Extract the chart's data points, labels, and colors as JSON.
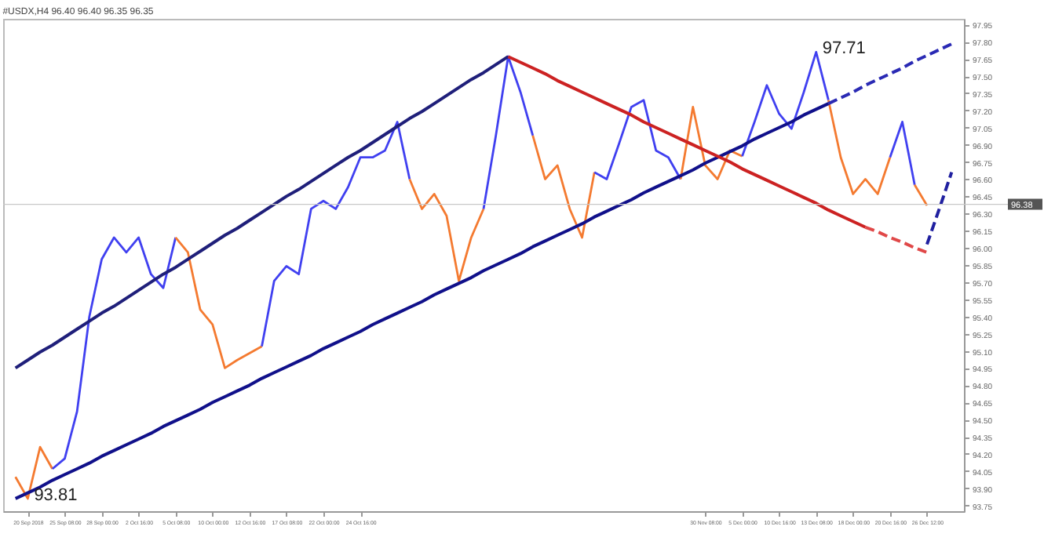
{
  "chart_data": {
    "type": "line",
    "title": "#USDX,H4 96.40 96.40 96.35 96.35",
    "categories": [
      null,
      "20 Sep 2018",
      null,
      null,
      "25 Sep 08:00",
      null,
      null,
      "28 Sep 00:00",
      null,
      null,
      "2 Oct 16:00",
      null,
      null,
      "5 Oct 08:00",
      null,
      null,
      "10 Oct 00:00",
      null,
      null,
      "12 Oct 16:00",
      null,
      null,
      "17 Oct 08:00",
      null,
      null,
      "22 Oct 00:00",
      null,
      null,
      "24 Oct 16:00",
      null,
      null,
      null,
      null,
      null,
      null,
      null,
      null,
      null,
      null,
      null,
      null,
      null,
      null,
      null,
      null,
      null,
      null,
      null,
      null,
      null,
      null,
      null,
      null,
      null,
      null,
      null,
      "30 Nov 08:00",
      null,
      null,
      "5 Dec 00:00",
      null,
      null,
      "10 Dec 16:00",
      null,
      null,
      "13 Dec 08:00",
      null,
      null,
      "18 Dec 00:00",
      null,
      null,
      "20 Dec 16:00",
      null,
      null,
      "26 Dec 12:00",
      null,
      null
    ],
    "ylim": [
      93.7,
      98.0
    ],
    "yticks": [
      {
        "value": 93.75,
        "label": "93.75"
      },
      {
        "value": 93.9,
        "label": "93.90"
      },
      {
        "value": 94.05,
        "label": "94.05"
      },
      {
        "value": 94.2,
        "label": "94.20"
      },
      {
        "value": 94.35,
        "label": "94.35"
      },
      {
        "value": 94.5,
        "label": "94.50"
      },
      {
        "value": 94.65,
        "label": "94.65"
      },
      {
        "value": 94.8,
        "label": "94.80"
      },
      {
        "value": 94.95,
        "label": "94.95"
      },
      {
        "value": 95.1,
        "label": "95.10"
      },
      {
        "value": 95.25,
        "label": "95.25"
      },
      {
        "value": 95.4,
        "label": "95.40"
      },
      {
        "value": 95.55,
        "label": "95.55"
      },
      {
        "value": 95.7,
        "label": "95.70"
      },
      {
        "value": 95.85,
        "label": "95.85"
      },
      {
        "value": 96.0,
        "label": "96.00"
      },
      {
        "value": 96.15,
        "label": "96.15"
      },
      {
        "value": 96.3,
        "label": "96.30"
      },
      {
        "value": 96.45,
        "label": "96.45"
      },
      {
        "value": 96.6,
        "label": "96.60"
      },
      {
        "value": 96.75,
        "label": "96.75"
      },
      {
        "value": 96.9,
        "label": "96.90"
      },
      {
        "value": 97.05,
        "label": "97.05"
      },
      {
        "value": 97.2,
        "label": "97.20"
      },
      {
        "value": 97.35,
        "label": "97.35"
      },
      {
        "value": 97.5,
        "label": "97.50"
      },
      {
        "value": 97.65,
        "label": "97.65"
      },
      {
        "value": 97.8,
        "label": "97.80"
      },
      {
        "value": 97.95,
        "label": "97.95"
      }
    ],
    "grid": false,
    "marker": "none",
    "series": [
      {
        "color": "#f47a30",
        "values": [
          94.0,
          93.81,
          94.26,
          94.07,
          null,
          null,
          null,
          null,
          null,
          null,
          null,
          null,
          null,
          null,
          null,
          null,
          null,
          null,
          null,
          null,
          null,
          null,
          null,
          null,
          null,
          null,
          null,
          null,
          null,
          null,
          null,
          null,
          null,
          null,
          null,
          null,
          null,
          null,
          null,
          null,
          null,
          null,
          null,
          null,
          null,
          null,
          null,
          null,
          null,
          null,
          null,
          null,
          null,
          null,
          null,
          null,
          null,
          null,
          null,
          null,
          null,
          null,
          null,
          null,
          null,
          null,
          null,
          null,
          null,
          null,
          null,
          null,
          null,
          null,
          null,
          null,
          null
        ]
      },
      {
        "color": "#4040f0",
        "values": [
          null,
          null,
          null,
          94.07,
          94.16,
          94.57,
          95.4,
          95.9,
          96.09,
          95.96,
          96.09,
          95.77,
          95.65,
          96.09,
          null,
          null,
          null,
          null,
          null,
          null,
          null,
          null,
          null,
          null,
          null,
          null,
          null,
          null,
          null,
          null,
          null,
          null,
          null,
          null,
          null,
          null,
          null,
          null,
          null,
          null,
          null,
          null,
          null,
          null,
          null,
          null,
          null,
          null,
          null,
          null,
          null,
          null,
          null,
          null,
          null,
          null,
          null,
          null,
          null,
          null,
          null,
          null,
          null,
          null,
          null,
          null,
          null,
          null,
          null,
          null,
          null,
          null,
          null,
          null,
          null,
          null,
          null
        ]
      },
      {
        "color": "#f47a30",
        "values": [
          null,
          null,
          null,
          null,
          null,
          null,
          null,
          null,
          null,
          null,
          null,
          null,
          null,
          96.09,
          95.96,
          95.46,
          95.33,
          94.95,
          95.02,
          95.08,
          95.14,
          null,
          null,
          null,
          null,
          null,
          null,
          null,
          null,
          null,
          null,
          null,
          null,
          null,
          null,
          null,
          null,
          null,
          null,
          null,
          null,
          null,
          null,
          null,
          null,
          null,
          null,
          null,
          null,
          null,
          null,
          null,
          null,
          null,
          null,
          null,
          null,
          null,
          null,
          null,
          null,
          null,
          null,
          null,
          null,
          null,
          null,
          null,
          null,
          null,
          null,
          null,
          null,
          null,
          null,
          null,
          null
        ]
      },
      {
        "color": "#4040f0",
        "values": [
          null,
          null,
          null,
          null,
          null,
          null,
          null,
          null,
          null,
          null,
          null,
          null,
          null,
          null,
          null,
          null,
          null,
          null,
          null,
          null,
          95.14,
          95.71,
          95.84,
          95.77,
          96.34,
          96.41,
          96.34,
          96.53,
          96.79,
          96.79,
          96.85,
          97.1,
          96.6,
          null,
          null,
          null,
          null,
          null,
          null,
          null,
          null,
          null,
          null,
          null,
          null,
          null,
          null,
          null,
          null,
          null,
          null,
          null,
          null,
          null,
          null,
          null,
          null,
          null,
          null,
          null,
          null,
          null,
          null,
          null,
          null,
          null,
          null,
          null,
          null,
          null,
          null,
          null,
          null,
          null,
          null,
          null,
          null
        ]
      },
      {
        "color": "#f47a30",
        "values": [
          null,
          null,
          null,
          null,
          null,
          null,
          null,
          null,
          null,
          null,
          null,
          null,
          null,
          null,
          null,
          null,
          null,
          null,
          null,
          null,
          null,
          null,
          null,
          null,
          null,
          null,
          null,
          null,
          null,
          null,
          null,
          null,
          96.6,
          96.34,
          96.47,
          96.28,
          95.71,
          96.09,
          96.34,
          null,
          null,
          null,
          null,
          null,
          null,
          null,
          null,
          null,
          null,
          null,
          null,
          null,
          null,
          null,
          null,
          null,
          null,
          null,
          null,
          null,
          null,
          null,
          null,
          null,
          null,
          null,
          null,
          null,
          null,
          null,
          null,
          null,
          null,
          null,
          null,
          null,
          null
        ]
      },
      {
        "color": "#4040f0",
        "values": [
          null,
          null,
          null,
          null,
          null,
          null,
          null,
          null,
          null,
          null,
          null,
          null,
          null,
          null,
          null,
          null,
          null,
          null,
          null,
          null,
          null,
          null,
          null,
          null,
          null,
          null,
          null,
          null,
          null,
          null,
          null,
          null,
          null,
          null,
          null,
          null,
          null,
          null,
          96.34,
          96.98,
          97.67,
          97.36,
          96.98,
          null,
          null,
          null,
          null,
          null,
          null,
          null,
          null,
          null,
          null,
          null,
          null,
          null,
          null,
          null,
          null,
          null,
          null,
          null,
          null,
          null,
          null,
          null,
          null,
          null,
          null,
          null,
          null,
          null,
          null,
          null,
          null,
          null,
          null
        ]
      },
      {
        "color": "#f47a30",
        "values": [
          null,
          null,
          null,
          null,
          null,
          null,
          null,
          null,
          null,
          null,
          null,
          null,
          null,
          null,
          null,
          null,
          null,
          null,
          null,
          null,
          null,
          null,
          null,
          null,
          null,
          null,
          null,
          null,
          null,
          null,
          null,
          null,
          null,
          null,
          null,
          null,
          null,
          null,
          null,
          null,
          null,
          null,
          96.98,
          96.6,
          96.72,
          96.34,
          96.09,
          96.66,
          null,
          null,
          null,
          null,
          null,
          null,
          null,
          null,
          null,
          null,
          null,
          null,
          null,
          null,
          null,
          null,
          null,
          null,
          null,
          null,
          null,
          null,
          null,
          null,
          null,
          null,
          null,
          null,
          null
        ]
      },
      {
        "color": "#4040f0",
        "values": [
          null,
          null,
          null,
          null,
          null,
          null,
          null,
          null,
          null,
          null,
          null,
          null,
          null,
          null,
          null,
          null,
          null,
          null,
          null,
          null,
          null,
          null,
          null,
          null,
          null,
          null,
          null,
          null,
          null,
          null,
          null,
          null,
          null,
          null,
          null,
          null,
          null,
          null,
          null,
          null,
          null,
          null,
          null,
          null,
          null,
          null,
          null,
          96.66,
          96.6,
          96.91,
          97.23,
          97.29,
          96.85,
          96.79,
          96.6,
          null,
          null,
          null,
          null,
          null,
          null,
          null,
          null,
          null,
          null,
          null,
          null,
          null,
          null,
          null,
          null,
          null,
          null,
          null,
          null,
          null,
          null
        ]
      },
      {
        "color": "#f47a30",
        "values": [
          null,
          null,
          null,
          null,
          null,
          null,
          null,
          null,
          null,
          null,
          null,
          null,
          null,
          null,
          null,
          null,
          null,
          null,
          null,
          null,
          null,
          null,
          null,
          null,
          null,
          null,
          null,
          null,
          null,
          null,
          null,
          null,
          null,
          null,
          null,
          null,
          null,
          null,
          null,
          null,
          null,
          null,
          null,
          null,
          null,
          null,
          null,
          null,
          null,
          null,
          null,
          null,
          null,
          null,
          96.6,
          97.23,
          96.72,
          96.6,
          96.85,
          96.8,
          null,
          null,
          null,
          null,
          null,
          null,
          null,
          null,
          null,
          null,
          null,
          null,
          null,
          null,
          null,
          null,
          null
        ]
      },
      {
        "color": "#4040f0",
        "values": [
          null,
          null,
          null,
          null,
          null,
          null,
          null,
          null,
          null,
          null,
          null,
          null,
          null,
          null,
          null,
          null,
          null,
          null,
          null,
          null,
          null,
          null,
          null,
          null,
          null,
          null,
          null,
          null,
          null,
          null,
          null,
          null,
          null,
          null,
          null,
          null,
          null,
          null,
          null,
          null,
          null,
          null,
          null,
          null,
          null,
          null,
          null,
          null,
          null,
          null,
          null,
          null,
          null,
          null,
          null,
          null,
          null,
          null,
          null,
          96.8,
          97.1,
          97.42,
          97.17,
          97.04,
          97.36,
          97.71,
          97.29,
          null,
          null,
          null,
          null,
          null,
          null,
          null,
          null,
          null,
          null
        ]
      },
      {
        "color": "#f47a30",
        "values": [
          null,
          null,
          null,
          null,
          null,
          null,
          null,
          null,
          null,
          null,
          null,
          null,
          null,
          null,
          null,
          null,
          null,
          null,
          null,
          null,
          null,
          null,
          null,
          null,
          null,
          null,
          null,
          null,
          null,
          null,
          null,
          null,
          null,
          null,
          null,
          null,
          null,
          null,
          null,
          null,
          null,
          null,
          null,
          null,
          null,
          null,
          null,
          null,
          null,
          null,
          null,
          null,
          null,
          null,
          null,
          null,
          null,
          null,
          null,
          null,
          null,
          null,
          null,
          null,
          null,
          null,
          97.29,
          96.79,
          96.47,
          96.6,
          96.47,
          96.79,
          null,
          null,
          null,
          null,
          null
        ]
      },
      {
        "color": "#4040f0",
        "values": [
          null,
          null,
          null,
          null,
          null,
          null,
          null,
          null,
          null,
          null,
          null,
          null,
          null,
          null,
          null,
          null,
          null,
          null,
          null,
          null,
          null,
          null,
          null,
          null,
          null,
          null,
          null,
          null,
          null,
          null,
          null,
          null,
          null,
          null,
          null,
          null,
          null,
          null,
          null,
          null,
          null,
          null,
          null,
          null,
          null,
          null,
          null,
          null,
          null,
          null,
          null,
          null,
          null,
          null,
          null,
          null,
          null,
          null,
          null,
          null,
          null,
          null,
          null,
          null,
          null,
          null,
          null,
          null,
          null,
          null,
          null,
          96.79,
          97.1,
          96.55,
          null,
          null,
          null
        ]
      },
      {
        "color": "#f47a30",
        "values": [
          null,
          null,
          null,
          null,
          null,
          null,
          null,
          null,
          null,
          null,
          null,
          null,
          null,
          null,
          null,
          null,
          null,
          null,
          null,
          null,
          null,
          null,
          null,
          null,
          null,
          null,
          null,
          null,
          null,
          null,
          null,
          null,
          null,
          null,
          null,
          null,
          null,
          null,
          null,
          null,
          null,
          null,
          null,
          null,
          null,
          null,
          null,
          null,
          null,
          null,
          null,
          null,
          null,
          null,
          null,
          null,
          null,
          null,
          null,
          null,
          null,
          null,
          null,
          null,
          null,
          null,
          null,
          null,
          null,
          null,
          null,
          null,
          null,
          96.55,
          96.37,
          null,
          null
        ]
      },
      {
        "color": "#1f1f7a",
        "line_style": "solid",
        "values": [
          94.95,
          95.02,
          95.09,
          95.15,
          95.22,
          95.29,
          95.36,
          95.43,
          95.49,
          95.56,
          95.63,
          95.7,
          95.77,
          95.83,
          95.9,
          95.97,
          96.04,
          96.11,
          96.17,
          96.24,
          96.31,
          96.38,
          96.45,
          96.51,
          96.58,
          96.65,
          96.72,
          96.79,
          96.85,
          96.92,
          96.99,
          97.06,
          97.13,
          97.19,
          97.26,
          97.33,
          97.4,
          97.47,
          97.53,
          97.6,
          97.67,
          null,
          null,
          null,
          null,
          null,
          null,
          null,
          null,
          null,
          null,
          null,
          null,
          null,
          null,
          null,
          null,
          null,
          null,
          null,
          null,
          null,
          null,
          null,
          null,
          null,
          null,
          null,
          null,
          null,
          null,
          null,
          null,
          null,
          null,
          null,
          null
        ]
      },
      {
        "color": "#10108a",
        "line_style": "solid",
        "values": [
          93.81,
          93.86,
          93.91,
          93.97,
          94.02,
          94.07,
          94.12,
          94.18,
          94.23,
          94.28,
          94.33,
          94.38,
          94.44,
          94.49,
          94.54,
          94.59,
          94.65,
          94.7,
          94.75,
          94.8,
          94.86,
          94.91,
          94.96,
          95.01,
          95.06,
          95.12,
          95.17,
          95.22,
          95.27,
          95.33,
          95.38,
          95.43,
          95.48,
          95.53,
          95.59,
          95.64,
          95.69,
          95.74,
          95.8,
          95.85,
          95.9,
          95.95,
          96.01,
          96.06,
          96.11,
          96.16,
          96.21,
          96.27,
          96.32,
          96.37,
          96.42,
          96.48,
          96.53,
          96.58,
          96.63,
          96.68,
          96.74,
          96.79,
          96.84,
          96.89,
          96.95,
          97.0,
          97.05,
          97.1,
          97.16,
          97.21,
          97.26,
          null,
          null,
          null,
          null,
          null,
          null,
          null,
          null,
          null,
          null
        ]
      },
      {
        "color": "#2a2ab4",
        "line_style": "dashed",
        "values": [
          null,
          null,
          null,
          null,
          null,
          null,
          null,
          null,
          null,
          null,
          null,
          null,
          null,
          null,
          null,
          null,
          null,
          null,
          null,
          null,
          null,
          null,
          null,
          null,
          null,
          null,
          null,
          null,
          null,
          null,
          null,
          null,
          null,
          null,
          null,
          null,
          null,
          null,
          null,
          null,
          null,
          null,
          null,
          null,
          null,
          null,
          null,
          null,
          null,
          null,
          null,
          null,
          null,
          null,
          null,
          null,
          null,
          null,
          null,
          null,
          null,
          null,
          null,
          null,
          null,
          null,
          97.26,
          97.31,
          97.36,
          97.42,
          97.47,
          97.52,
          97.57,
          97.63,
          97.68,
          97.73,
          97.78
        ]
      },
      {
        "color": "#cc2222",
        "line_style": "solid",
        "values": [
          null,
          null,
          null,
          null,
          null,
          null,
          null,
          null,
          null,
          null,
          null,
          null,
          null,
          null,
          null,
          null,
          null,
          null,
          null,
          null,
          null,
          null,
          null,
          null,
          null,
          null,
          null,
          null,
          null,
          null,
          null,
          null,
          null,
          null,
          null,
          null,
          null,
          null,
          null,
          null,
          97.67,
          97.62,
          97.57,
          97.52,
          97.46,
          97.41,
          97.36,
          97.31,
          97.26,
          97.21,
          97.16,
          97.1,
          97.05,
          97.0,
          96.95,
          96.9,
          96.85,
          96.8,
          96.75,
          96.69,
          96.64,
          96.59,
          96.54,
          96.49,
          96.44,
          96.39,
          96.33,
          96.28,
          96.23,
          96.18,
          null,
          null,
          null,
          null,
          null,
          null,
          null
        ]
      },
      {
        "color": "#e04848",
        "line_style": "dashed",
        "values": [
          null,
          null,
          null,
          null,
          null,
          null,
          null,
          null,
          null,
          null,
          null,
          null,
          null,
          null,
          null,
          null,
          null,
          null,
          null,
          null,
          null,
          null,
          null,
          null,
          null,
          null,
          null,
          null,
          null,
          null,
          null,
          null,
          null,
          null,
          null,
          null,
          null,
          null,
          null,
          null,
          null,
          null,
          null,
          null,
          null,
          null,
          null,
          null,
          null,
          null,
          null,
          null,
          null,
          null,
          null,
          null,
          null,
          null,
          null,
          null,
          null,
          null,
          null,
          null,
          null,
          null,
          null,
          null,
          null,
          96.18,
          96.14,
          96.09,
          96.05,
          96.0,
          95.96,
          null,
          null
        ]
      },
      {
        "color": "#2020a0",
        "line_style": "dashed",
        "values": [
          null,
          null,
          null,
          null,
          null,
          null,
          null,
          null,
          null,
          null,
          null,
          null,
          null,
          null,
          null,
          null,
          null,
          null,
          null,
          null,
          null,
          null,
          null,
          null,
          null,
          null,
          null,
          null,
          null,
          null,
          null,
          null,
          null,
          null,
          null,
          null,
          null,
          null,
          null,
          null,
          null,
          null,
          null,
          null,
          null,
          null,
          null,
          null,
          null,
          null,
          null,
          null,
          null,
          null,
          null,
          null,
          null,
          null,
          null,
          null,
          null,
          null,
          null,
          null,
          null,
          null,
          null,
          null,
          null,
          null,
          null,
          null,
          null,
          null,
          96.03,
          96.34,
          96.66
        ]
      }
    ],
    "annotations": [
      {
        "text": "93.81",
        "x": "20 Sep 2018",
        "y": 93.81
      },
      {
        "text": "97.71",
        "x": "13 Dec 08:00",
        "y": 97.71
      }
    ],
    "ref_lines": [
      {
        "axis": "y",
        "value": 96.38,
        "label": "96.38",
        "color": "#c8c8c8"
      }
    ]
  }
}
